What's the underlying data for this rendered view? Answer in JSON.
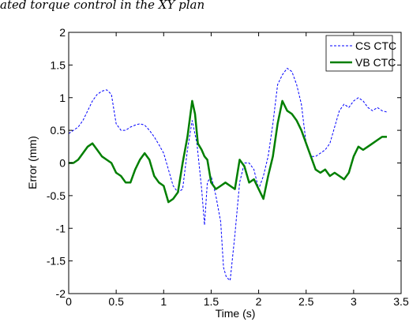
{
  "caption": "ated torque control in the XY plan",
  "colors": {
    "cs_series": "#0000ff",
    "vb_series": "#007f00",
    "axes": "#000000",
    "background": "#ffffff"
  },
  "chart_data": {
    "type": "line",
    "title": "",
    "xlabel": "Time (s)",
    "ylabel": "Error (mm)",
    "xlim": [
      0,
      3.5
    ],
    "ylim": [
      -2,
      2
    ],
    "xticks": [
      0,
      0.5,
      1,
      1.5,
      2,
      2.5,
      3,
      3.5
    ],
    "xtick_labels": [
      "0",
      "0.5",
      "1",
      "1.5",
      "2",
      "2.5",
      "3",
      "3.5"
    ],
    "yticks": [
      -2,
      -1.5,
      -1,
      -0.5,
      0,
      0.5,
      1,
      1.5,
      2
    ],
    "ytick_labels": [
      "-2",
      "-1.5",
      "-1",
      "-0.5",
      "0",
      "0.5",
      "1",
      "1.5",
      "2"
    ],
    "grid": false,
    "legend_position": "top-right",
    "series": [
      {
        "name": "CS CTC",
        "style": "dashed",
        "x": [
          0,
          0.05,
          0.1,
          0.15,
          0.2,
          0.25,
          0.3,
          0.35,
          0.4,
          0.45,
          0.5,
          0.55,
          0.6,
          0.65,
          0.7,
          0.75,
          0.8,
          0.85,
          0.9,
          0.95,
          1.0,
          1.05,
          1.1,
          1.15,
          1.2,
          1.25,
          1.3,
          1.35,
          1.4,
          1.43,
          1.46,
          1.5,
          1.55,
          1.6,
          1.63,
          1.66,
          1.7,
          1.75,
          1.8,
          1.85,
          1.9,
          1.95,
          2.0,
          2.05,
          2.1,
          2.15,
          2.2,
          2.25,
          2.3,
          2.35,
          2.4,
          2.45,
          2.5,
          2.55,
          2.6,
          2.65,
          2.7,
          2.75,
          2.8,
          2.85,
          2.9,
          2.95,
          3.0,
          3.05,
          3.1,
          3.15,
          3.2,
          3.25,
          3.3,
          3.35
        ],
        "y": [
          0.45,
          0.5,
          0.55,
          0.65,
          0.8,
          0.95,
          1.05,
          1.1,
          1.12,
          1.05,
          0.6,
          0.5,
          0.5,
          0.55,
          0.58,
          0.6,
          0.58,
          0.5,
          0.4,
          0.28,
          0.15,
          -0.1,
          -0.35,
          -0.45,
          -0.4,
          0.2,
          0.65,
          0.3,
          -0.4,
          -0.95,
          -0.3,
          -0.2,
          -0.5,
          -0.9,
          -1.6,
          -1.75,
          -1.8,
          -1.1,
          -0.3,
          0.0,
          0.0,
          -0.1,
          -0.4,
          -0.2,
          0.1,
          0.6,
          1.2,
          1.35,
          1.45,
          1.4,
          1.2,
          0.9,
          0.3,
          0.1,
          0.1,
          0.15,
          0.2,
          0.3,
          0.55,
          0.8,
          0.9,
          0.85,
          0.95,
          1.0,
          0.95,
          0.85,
          0.8,
          0.85,
          0.8,
          0.78
        ]
      },
      {
        "name": "VB CTC",
        "style": "solid",
        "x": [
          0,
          0.05,
          0.1,
          0.15,
          0.2,
          0.25,
          0.3,
          0.35,
          0.4,
          0.45,
          0.5,
          0.55,
          0.6,
          0.65,
          0.7,
          0.75,
          0.8,
          0.85,
          0.9,
          0.95,
          1.0,
          1.05,
          1.1,
          1.15,
          1.2,
          1.25,
          1.3,
          1.33,
          1.36,
          1.4,
          1.43,
          1.46,
          1.5,
          1.55,
          1.6,
          1.65,
          1.7,
          1.75,
          1.8,
          1.85,
          1.9,
          1.95,
          2.0,
          2.05,
          2.1,
          2.15,
          2.2,
          2.25,
          2.3,
          2.35,
          2.4,
          2.45,
          2.5,
          2.55,
          2.6,
          2.65,
          2.7,
          2.75,
          2.8,
          2.85,
          2.9,
          2.95,
          3.0,
          3.05,
          3.1,
          3.15,
          3.2,
          3.25,
          3.3,
          3.35
        ],
        "y": [
          0.0,
          0.0,
          0.05,
          0.15,
          0.25,
          0.3,
          0.2,
          0.1,
          0.05,
          0.0,
          -0.15,
          -0.2,
          -0.3,
          -0.3,
          -0.1,
          0.05,
          0.15,
          0.05,
          -0.2,
          -0.3,
          -0.35,
          -0.6,
          -0.55,
          -0.45,
          0.0,
          0.4,
          0.95,
          0.75,
          0.3,
          0.2,
          0.1,
          0.05,
          -0.3,
          -0.4,
          -0.35,
          -0.3,
          -0.35,
          -0.4,
          0.05,
          -0.05,
          -0.3,
          -0.25,
          -0.4,
          -0.55,
          -0.2,
          0.1,
          0.6,
          0.95,
          0.8,
          0.75,
          0.65,
          0.5,
          0.3,
          0.1,
          -0.1,
          -0.15,
          -0.1,
          -0.2,
          -0.15,
          -0.2,
          -0.25,
          -0.15,
          0.1,
          0.25,
          0.2,
          0.25,
          0.3,
          0.35,
          0.4,
          0.4
        ]
      }
    ]
  }
}
